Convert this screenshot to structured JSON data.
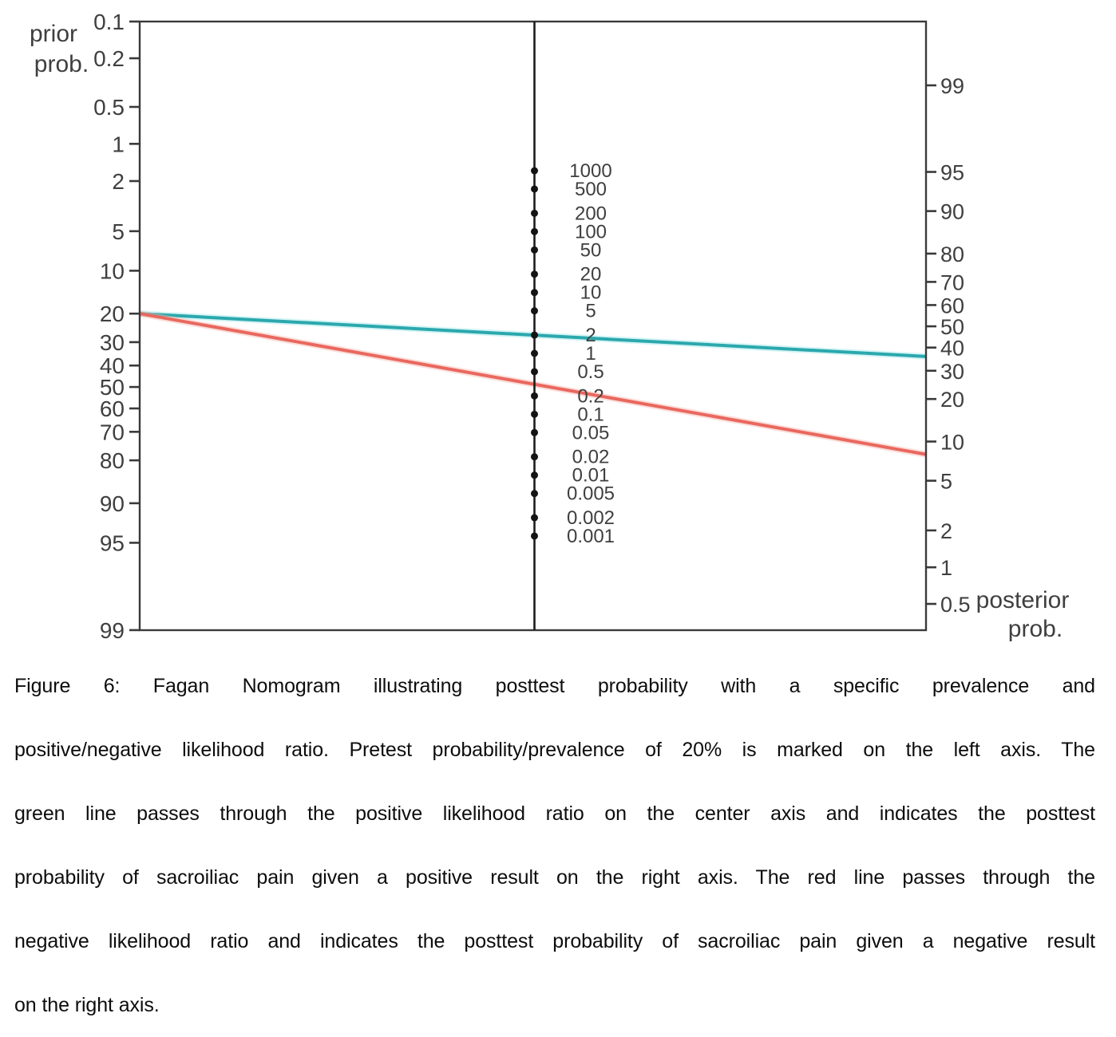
{
  "figure": {
    "caption_lines": [
      "Figure 6: Fagan Nomogram illustrating posttest probability with a specific prevalence and",
      "positive/negative likelihood ratio. Pretest probability/prevalence of 20% is marked on the left axis. The",
      "green line passes through the positive likelihood ratio on the center axis and indicates the posttest",
      "probability of sacroiliac pain given a positive result on the right axis. The red line passes through the",
      "negative likelihood ratio and indicates the posttest probability of sacroiliac pain given a negative result",
      "on the right axis."
    ]
  },
  "chart_data": {
    "type": "line",
    "variant": "fagan_nomogram",
    "title": "Fagan Nomogram",
    "axis_color": "#3a3a3a",
    "label_color": "#3f3f3f",
    "dot_color": "#141414",
    "left_axis": {
      "label": "prior prob.",
      "label_lines": [
        "prior",
        "prob."
      ],
      "scale": "logit_percent_descending",
      "ticks": [
        "0.1",
        "0.2",
        "0.5",
        "1",
        "2",
        "5",
        "10",
        "20",
        "30",
        "40",
        "50",
        "60",
        "70",
        "80",
        "90",
        "95",
        "99"
      ]
    },
    "center_axis": {
      "scale": "log10_descending",
      "ticks": [
        "1000",
        "500",
        "200",
        "100",
        "50",
        "20",
        "10",
        "5",
        "2",
        "1",
        "0.5",
        "0.2",
        "0.1",
        "0.05",
        "0.02",
        "0.01",
        "0.005",
        "0.002",
        "0.001"
      ]
    },
    "right_axis": {
      "label": "posterior prob.",
      "label_lines": [
        "posterior",
        "prob."
      ],
      "scale": "logit_percent_ascending",
      "ticks": [
        "99",
        "95",
        "90",
        "80",
        "70",
        "60",
        "50",
        "40",
        "30",
        "20",
        "10",
        "5",
        "2",
        "1",
        "0.5"
      ]
    },
    "lines": [
      {
        "name": "positive-likelihood",
        "color": "#2BA8AD",
        "halo": "#9FE6E9",
        "pretest_percent": 20,
        "likelihood_ratio": 2,
        "posttest_percent": 36
      },
      {
        "name": "negative-likelihood",
        "color": "#E9685F",
        "halo": "#F6B5AE",
        "pretest_percent": 20,
        "likelihood_ratio": 0.3,
        "posttest_percent": 8
      }
    ]
  }
}
